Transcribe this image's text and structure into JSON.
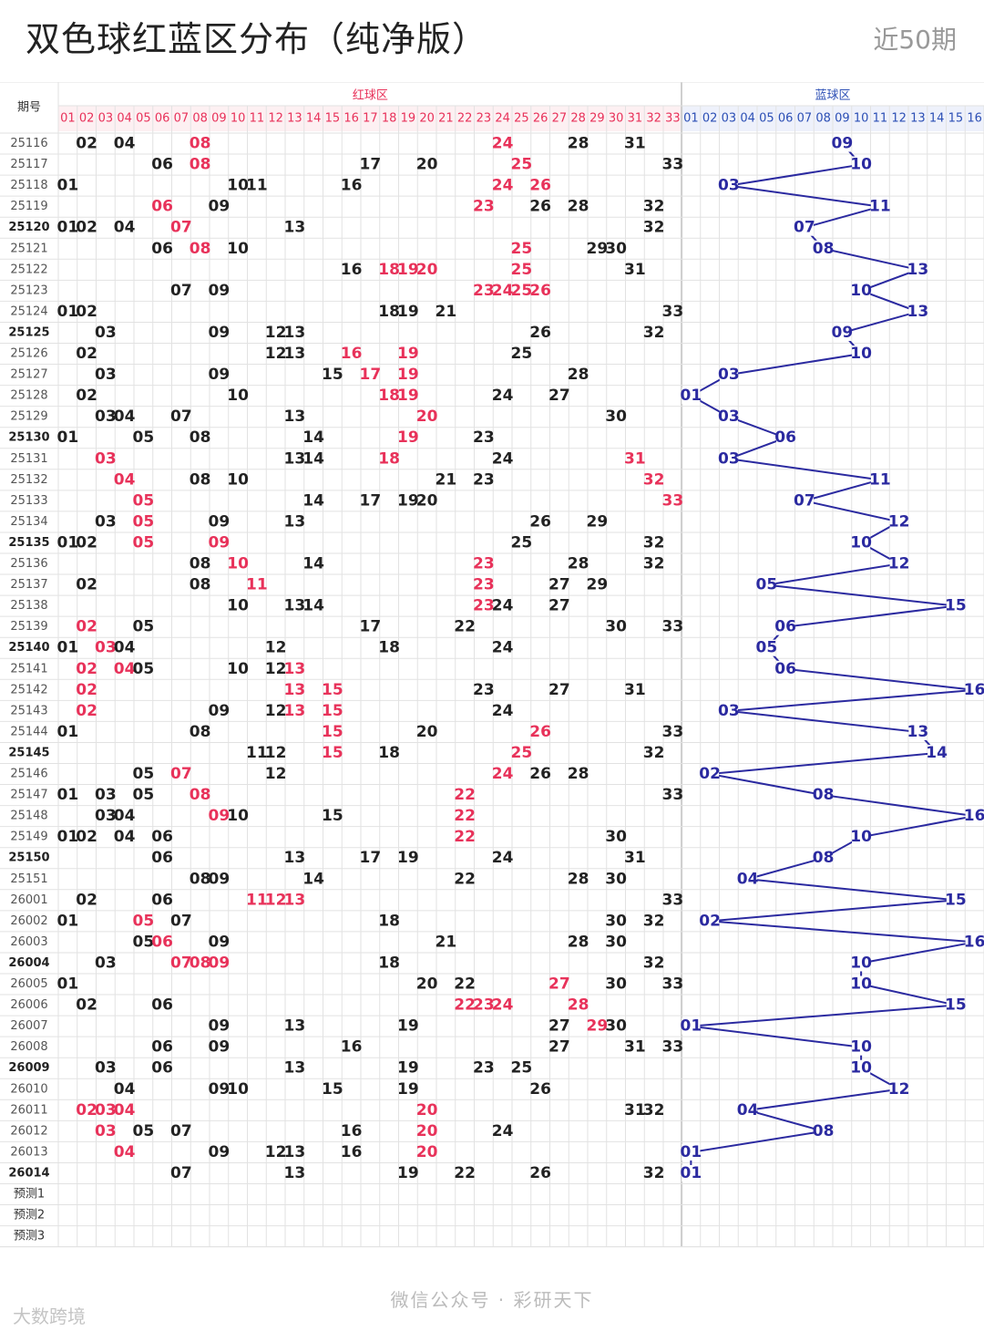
{
  "title": "双色球红蓝区分布（纯净版）",
  "period_label": "近50期",
  "footer": {
    "brand": "微信公众号 · 彩研天下",
    "logo": "大数跨境"
  },
  "colors": {
    "red": "#e8325a",
    "black": "#222222",
    "blue": "#2b2aa0",
    "red_header": "#e8325a",
    "blue_header": "#2c4fb5",
    "grid": "#e2e2e2"
  },
  "chart_data": {
    "type": "table",
    "header": {
      "issue_label": "期号",
      "red_zone": "红球区",
      "blue_zone": "蓝球区"
    },
    "red_columns": [
      "01",
      "02",
      "03",
      "04",
      "05",
      "06",
      "07",
      "08",
      "09",
      "10",
      "11",
      "12",
      "13",
      "14",
      "15",
      "16",
      "17",
      "18",
      "19",
      "20",
      "21",
      "22",
      "23",
      "24",
      "25",
      "26",
      "27",
      "28",
      "29",
      "30",
      "31",
      "32",
      "33"
    ],
    "blue_columns": [
      "01",
      "02",
      "03",
      "04",
      "05",
      "06",
      "07",
      "08",
      "09",
      "10",
      "11",
      "12",
      "13",
      "14",
      "15",
      "16"
    ],
    "rows": [
      {
        "issue": "25116",
        "red": [
          2,
          4,
          8,
          24,
          28,
          31
        ],
        "hot": [
          8,
          24
        ],
        "blue": 9
      },
      {
        "issue": "25117",
        "red": [
          6,
          8,
          17,
          20,
          25,
          33
        ],
        "hot": [
          8,
          25
        ],
        "blue": 10
      },
      {
        "issue": "25118",
        "red": [
          1,
          10,
          11,
          16,
          24,
          26
        ],
        "hot": [
          24,
          26
        ],
        "blue": 3
      },
      {
        "issue": "25119",
        "red": [
          6,
          9,
          23,
          26,
          28,
          32
        ],
        "hot": [
          6,
          23
        ],
        "blue": 11
      },
      {
        "issue": "25120",
        "red": [
          1,
          2,
          4,
          7,
          13,
          32
        ],
        "hot": [
          7
        ],
        "blue": 7
      },
      {
        "issue": "25121",
        "red": [
          6,
          8,
          10,
          25,
          29,
          30
        ],
        "hot": [
          8,
          25
        ],
        "blue": 8
      },
      {
        "issue": "25122",
        "red": [
          16,
          18,
          19,
          20,
          25,
          31
        ],
        "hot": [
          18,
          19,
          20,
          25
        ],
        "blue": 13
      },
      {
        "issue": "25123",
        "red": [
          7,
          9,
          23,
          24,
          25,
          26
        ],
        "hot": [
          23,
          24,
          25,
          26
        ],
        "blue": 10
      },
      {
        "issue": "25124",
        "red": [
          1,
          2,
          18,
          19,
          21,
          33
        ],
        "hot": [],
        "blue": 13
      },
      {
        "issue": "25125",
        "red": [
          3,
          9,
          12,
          13,
          26,
          32
        ],
        "hot": [],
        "blue": 9
      },
      {
        "issue": "25126",
        "red": [
          2,
          12,
          13,
          16,
          19,
          25
        ],
        "hot": [
          16,
          19
        ],
        "blue": 10
      },
      {
        "issue": "25127",
        "red": [
          3,
          9,
          15,
          17,
          19,
          28
        ],
        "hot": [
          17,
          19
        ],
        "blue": 3
      },
      {
        "issue": "25128",
        "red": [
          2,
          10,
          18,
          19,
          24,
          27
        ],
        "hot": [
          18,
          19
        ],
        "blue": 1
      },
      {
        "issue": "25129",
        "red": [
          3,
          4,
          7,
          13,
          20,
          30
        ],
        "hot": [
          20
        ],
        "blue": 3
      },
      {
        "issue": "25130",
        "red": [
          1,
          5,
          8,
          14,
          19,
          23
        ],
        "hot": [
          19
        ],
        "blue": 6
      },
      {
        "issue": "25131",
        "red": [
          3,
          13,
          14,
          18,
          24,
          31
        ],
        "hot": [
          3,
          18,
          31
        ],
        "blue": 3
      },
      {
        "issue": "25132",
        "red": [
          4,
          8,
          10,
          21,
          23,
          32
        ],
        "hot": [
          4,
          32
        ],
        "blue": 11
      },
      {
        "issue": "25133",
        "red": [
          5,
          14,
          17,
          19,
          20,
          33
        ],
        "hot": [
          5,
          33
        ],
        "blue": 7
      },
      {
        "issue": "25134",
        "red": [
          3,
          5,
          9,
          13,
          26,
          29
        ],
        "hot": [
          5
        ],
        "blue": 12
      },
      {
        "issue": "25135",
        "red": [
          1,
          2,
          5,
          9,
          25,
          32
        ],
        "hot": [
          5,
          9
        ],
        "blue": 10
      },
      {
        "issue": "25136",
        "red": [
          8,
          10,
          14,
          23,
          28,
          32
        ],
        "hot": [
          10,
          23
        ],
        "blue": 12
      },
      {
        "issue": "25137",
        "red": [
          2,
          8,
          11,
          23,
          27,
          29
        ],
        "hot": [
          11,
          23
        ],
        "blue": 5
      },
      {
        "issue": "25138",
        "red": [
          10,
          13,
          14,
          23,
          24,
          27
        ],
        "hot": [
          23
        ],
        "blue": 15
      },
      {
        "issue": "25139",
        "red": [
          2,
          5,
          17,
          22,
          30,
          33
        ],
        "hot": [
          2
        ],
        "blue": 6
      },
      {
        "issue": "25140",
        "red": [
          1,
          3,
          4,
          12,
          18,
          24
        ],
        "hot": [
          3
        ],
        "blue": 5
      },
      {
        "issue": "25141",
        "red": [
          2,
          4,
          5,
          10,
          12,
          13
        ],
        "hot": [
          2,
          4,
          13
        ],
        "blue": 6
      },
      {
        "issue": "25142",
        "red": [
          2,
          13,
          15,
          23,
          27,
          31
        ],
        "hot": [
          2,
          13,
          15
        ],
        "blue": 16
      },
      {
        "issue": "25143",
        "red": [
          2,
          9,
          12,
          13,
          15,
          24
        ],
        "hot": [
          2,
          13,
          15
        ],
        "blue": 3
      },
      {
        "issue": "25144",
        "red": [
          1,
          8,
          15,
          20,
          26,
          33
        ],
        "hot": [
          15,
          26
        ],
        "blue": 13
      },
      {
        "issue": "25145",
        "red": [
          11,
          12,
          15,
          18,
          25,
          32
        ],
        "hot": [
          15,
          25
        ],
        "blue": 14
      },
      {
        "issue": "25146",
        "red": [
          5,
          7,
          12,
          24,
          26,
          28
        ],
        "hot": [
          7,
          24
        ],
        "blue": 2
      },
      {
        "issue": "25147",
        "red": [
          1,
          3,
          5,
          8,
          22,
          33
        ],
        "hot": [
          8,
          22
        ],
        "blue": 8
      },
      {
        "issue": "25148",
        "red": [
          3,
          4,
          9,
          10,
          15,
          22
        ],
        "hot": [
          9,
          22
        ],
        "blue": 16
      },
      {
        "issue": "25149",
        "red": [
          1,
          2,
          4,
          6,
          22,
          30
        ],
        "hot": [
          22
        ],
        "blue": 10
      },
      {
        "issue": "25150",
        "red": [
          6,
          13,
          17,
          19,
          24,
          31
        ],
        "hot": [],
        "blue": 8
      },
      {
        "issue": "25151",
        "red": [
          8,
          9,
          14,
          22,
          28,
          30
        ],
        "hot": [],
        "blue": 4
      },
      {
        "issue": "26001",
        "red": [
          2,
          6,
          11,
          12,
          13,
          33
        ],
        "hot": [
          11,
          12,
          13
        ],
        "blue": 15
      },
      {
        "issue": "26002",
        "red": [
          1,
          5,
          7,
          18,
          30,
          32
        ],
        "hot": [
          5
        ],
        "blue": 2
      },
      {
        "issue": "26003",
        "red": [
          5,
          6,
          9,
          21,
          28,
          30
        ],
        "hot": [
          6
        ],
        "blue": 16
      },
      {
        "issue": "26004",
        "red": [
          3,
          7,
          8,
          9,
          18,
          32
        ],
        "hot": [
          7,
          8,
          9
        ],
        "blue": 10
      },
      {
        "issue": "26005",
        "red": [
          1,
          20,
          22,
          27,
          30,
          33
        ],
        "hot": [
          27
        ],
        "blue": 10
      },
      {
        "issue": "26006",
        "red": [
          2,
          6,
          22,
          23,
          24,
          28
        ],
        "hot": [
          22,
          23,
          24,
          28
        ],
        "blue": 15
      },
      {
        "issue": "26007",
        "red": [
          9,
          13,
          19,
          27,
          29,
          30
        ],
        "hot": [
          29
        ],
        "blue": 1
      },
      {
        "issue": "26008",
        "red": [
          6,
          9,
          16,
          27,
          31,
          33
        ],
        "hot": [],
        "blue": 10
      },
      {
        "issue": "26009",
        "red": [
          3,
          6,
          13,
          19,
          23,
          25
        ],
        "hot": [],
        "blue": 10
      },
      {
        "issue": "26010",
        "red": [
          4,
          9,
          10,
          15,
          19,
          26
        ],
        "hot": [],
        "blue": 12
      },
      {
        "issue": "26011",
        "red": [
          2,
          3,
          4,
          20,
          31,
          32
        ],
        "hot": [
          2,
          3,
          4,
          20
        ],
        "blue": 4
      },
      {
        "issue": "26012",
        "red": [
          3,
          5,
          7,
          16,
          20,
          24
        ],
        "hot": [
          3,
          20
        ],
        "blue": 8
      },
      {
        "issue": "26013",
        "red": [
          4,
          9,
          12,
          13,
          16,
          20
        ],
        "hot": [
          4,
          20
        ],
        "blue": 1
      },
      {
        "issue": "26014",
        "red": [
          7,
          13,
          19,
          22,
          26,
          32
        ],
        "hot": [],
        "blue": 1
      }
    ],
    "forecast_rows": [
      "预测1",
      "预测2",
      "预测3"
    ]
  }
}
